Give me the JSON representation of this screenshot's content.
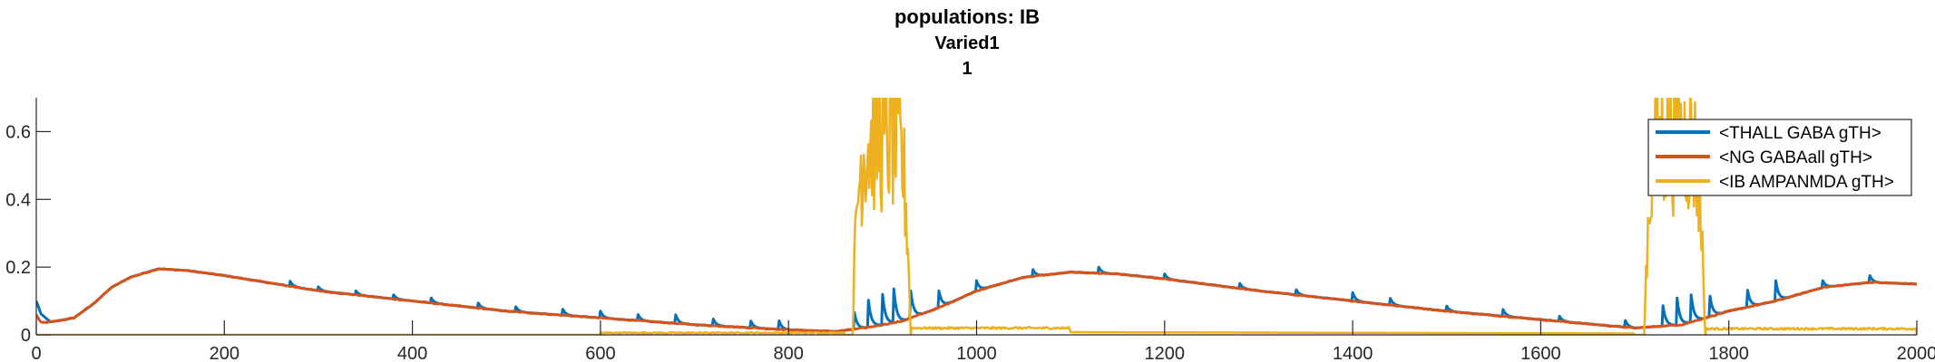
{
  "chart_data": {
    "type": "line",
    "title": "populations: IB",
    "subtitle": "Varied1",
    "subtitle2": "1",
    "xlabel": "",
    "ylabel": "",
    "xlim": [
      0,
      2000
    ],
    "ylim": [
      0,
      0.7
    ],
    "xticks": [
      0,
      200,
      400,
      600,
      800,
      1000,
      1200,
      1400,
      1600,
      1800,
      2000
    ],
    "yticks": [
      0,
      0.2,
      0.4,
      0.6
    ],
    "ytick_labels": [
      "0",
      "0.2",
      "0.4",
      "0.6"
    ],
    "grid": false,
    "legend_position": "top-right",
    "colors": {
      "thall": "#0072BD",
      "ng": "#D95319",
      "ib": "#EDB120",
      "axis": "#262626"
    },
    "series": [
      {
        "name": "<THALL GABA gTH>",
        "color": "#0072BD"
      },
      {
        "name": "<NG GABAall gTH>",
        "color": "#D95319"
      },
      {
        "name": "<IB AMPANMDA gTH>",
        "color": "#EDB120"
      }
    ],
    "ng_envelope": [
      [
        0,
        0.06
      ],
      [
        5,
        0.035
      ],
      [
        20,
        0.04
      ],
      [
        40,
        0.05
      ],
      [
        60,
        0.09
      ],
      [
        80,
        0.14
      ],
      [
        100,
        0.17
      ],
      [
        130,
        0.195
      ],
      [
        160,
        0.19
      ],
      [
        200,
        0.175
      ],
      [
        300,
        0.13
      ],
      [
        400,
        0.1
      ],
      [
        500,
        0.07
      ],
      [
        600,
        0.05
      ],
      [
        700,
        0.03
      ],
      [
        800,
        0.015
      ],
      [
        850,
        0.01
      ],
      [
        880,
        0.02
      ],
      [
        920,
        0.04
      ],
      [
        960,
        0.08
      ],
      [
        1000,
        0.13
      ],
      [
        1050,
        0.17
      ],
      [
        1100,
        0.185
      ],
      [
        1150,
        0.18
      ],
      [
        1200,
        0.165
      ],
      [
        1300,
        0.13
      ],
      [
        1400,
        0.1
      ],
      [
        1500,
        0.07
      ],
      [
        1600,
        0.045
      ],
      [
        1700,
        0.02
      ],
      [
        1750,
        0.03
      ],
      [
        1800,
        0.07
      ],
      [
        1850,
        0.1
      ],
      [
        1900,
        0.14
      ],
      [
        1950,
        0.155
      ],
      [
        2000,
        0.15
      ]
    ],
    "thall_spikes": [
      [
        270,
        0.015
      ],
      [
        300,
        0.012
      ],
      [
        340,
        0.012
      ],
      [
        380,
        0.012
      ],
      [
        420,
        0.015
      ],
      [
        470,
        0.015
      ],
      [
        510,
        0.015
      ],
      [
        560,
        0.018
      ],
      [
        600,
        0.02
      ],
      [
        640,
        0.018
      ],
      [
        680,
        0.025
      ],
      [
        720,
        0.02
      ],
      [
        760,
        0.02
      ],
      [
        790,
        0.025
      ],
      [
        870,
        0.05
      ],
      [
        885,
        0.08
      ],
      [
        900,
        0.09
      ],
      [
        912,
        0.1
      ],
      [
        930,
        0.08
      ],
      [
        960,
        0.05
      ],
      [
        1000,
        0.03
      ],
      [
        1060,
        0.02
      ],
      [
        1130,
        0.018
      ],
      [
        1200,
        0.015
      ],
      [
        1280,
        0.015
      ],
      [
        1340,
        0.015
      ],
      [
        1400,
        0.025
      ],
      [
        1440,
        0.02
      ],
      [
        1500,
        0.015
      ],
      [
        1560,
        0.02
      ],
      [
        1620,
        0.015
      ],
      [
        1690,
        0.02
      ],
      [
        1730,
        0.06
      ],
      [
        1745,
        0.08
      ],
      [
        1760,
        0.08
      ],
      [
        1780,
        0.06
      ],
      [
        1820,
        0.05
      ],
      [
        1850,
        0.06
      ],
      [
        1900,
        0.02
      ],
      [
        1950,
        0.02
      ]
    ],
    "ib_bursts": [
      [
        868,
        930,
        0.7
      ],
      [
        1710,
        1775,
        0.7
      ]
    ],
    "ib_baseline": 0.0
  }
}
